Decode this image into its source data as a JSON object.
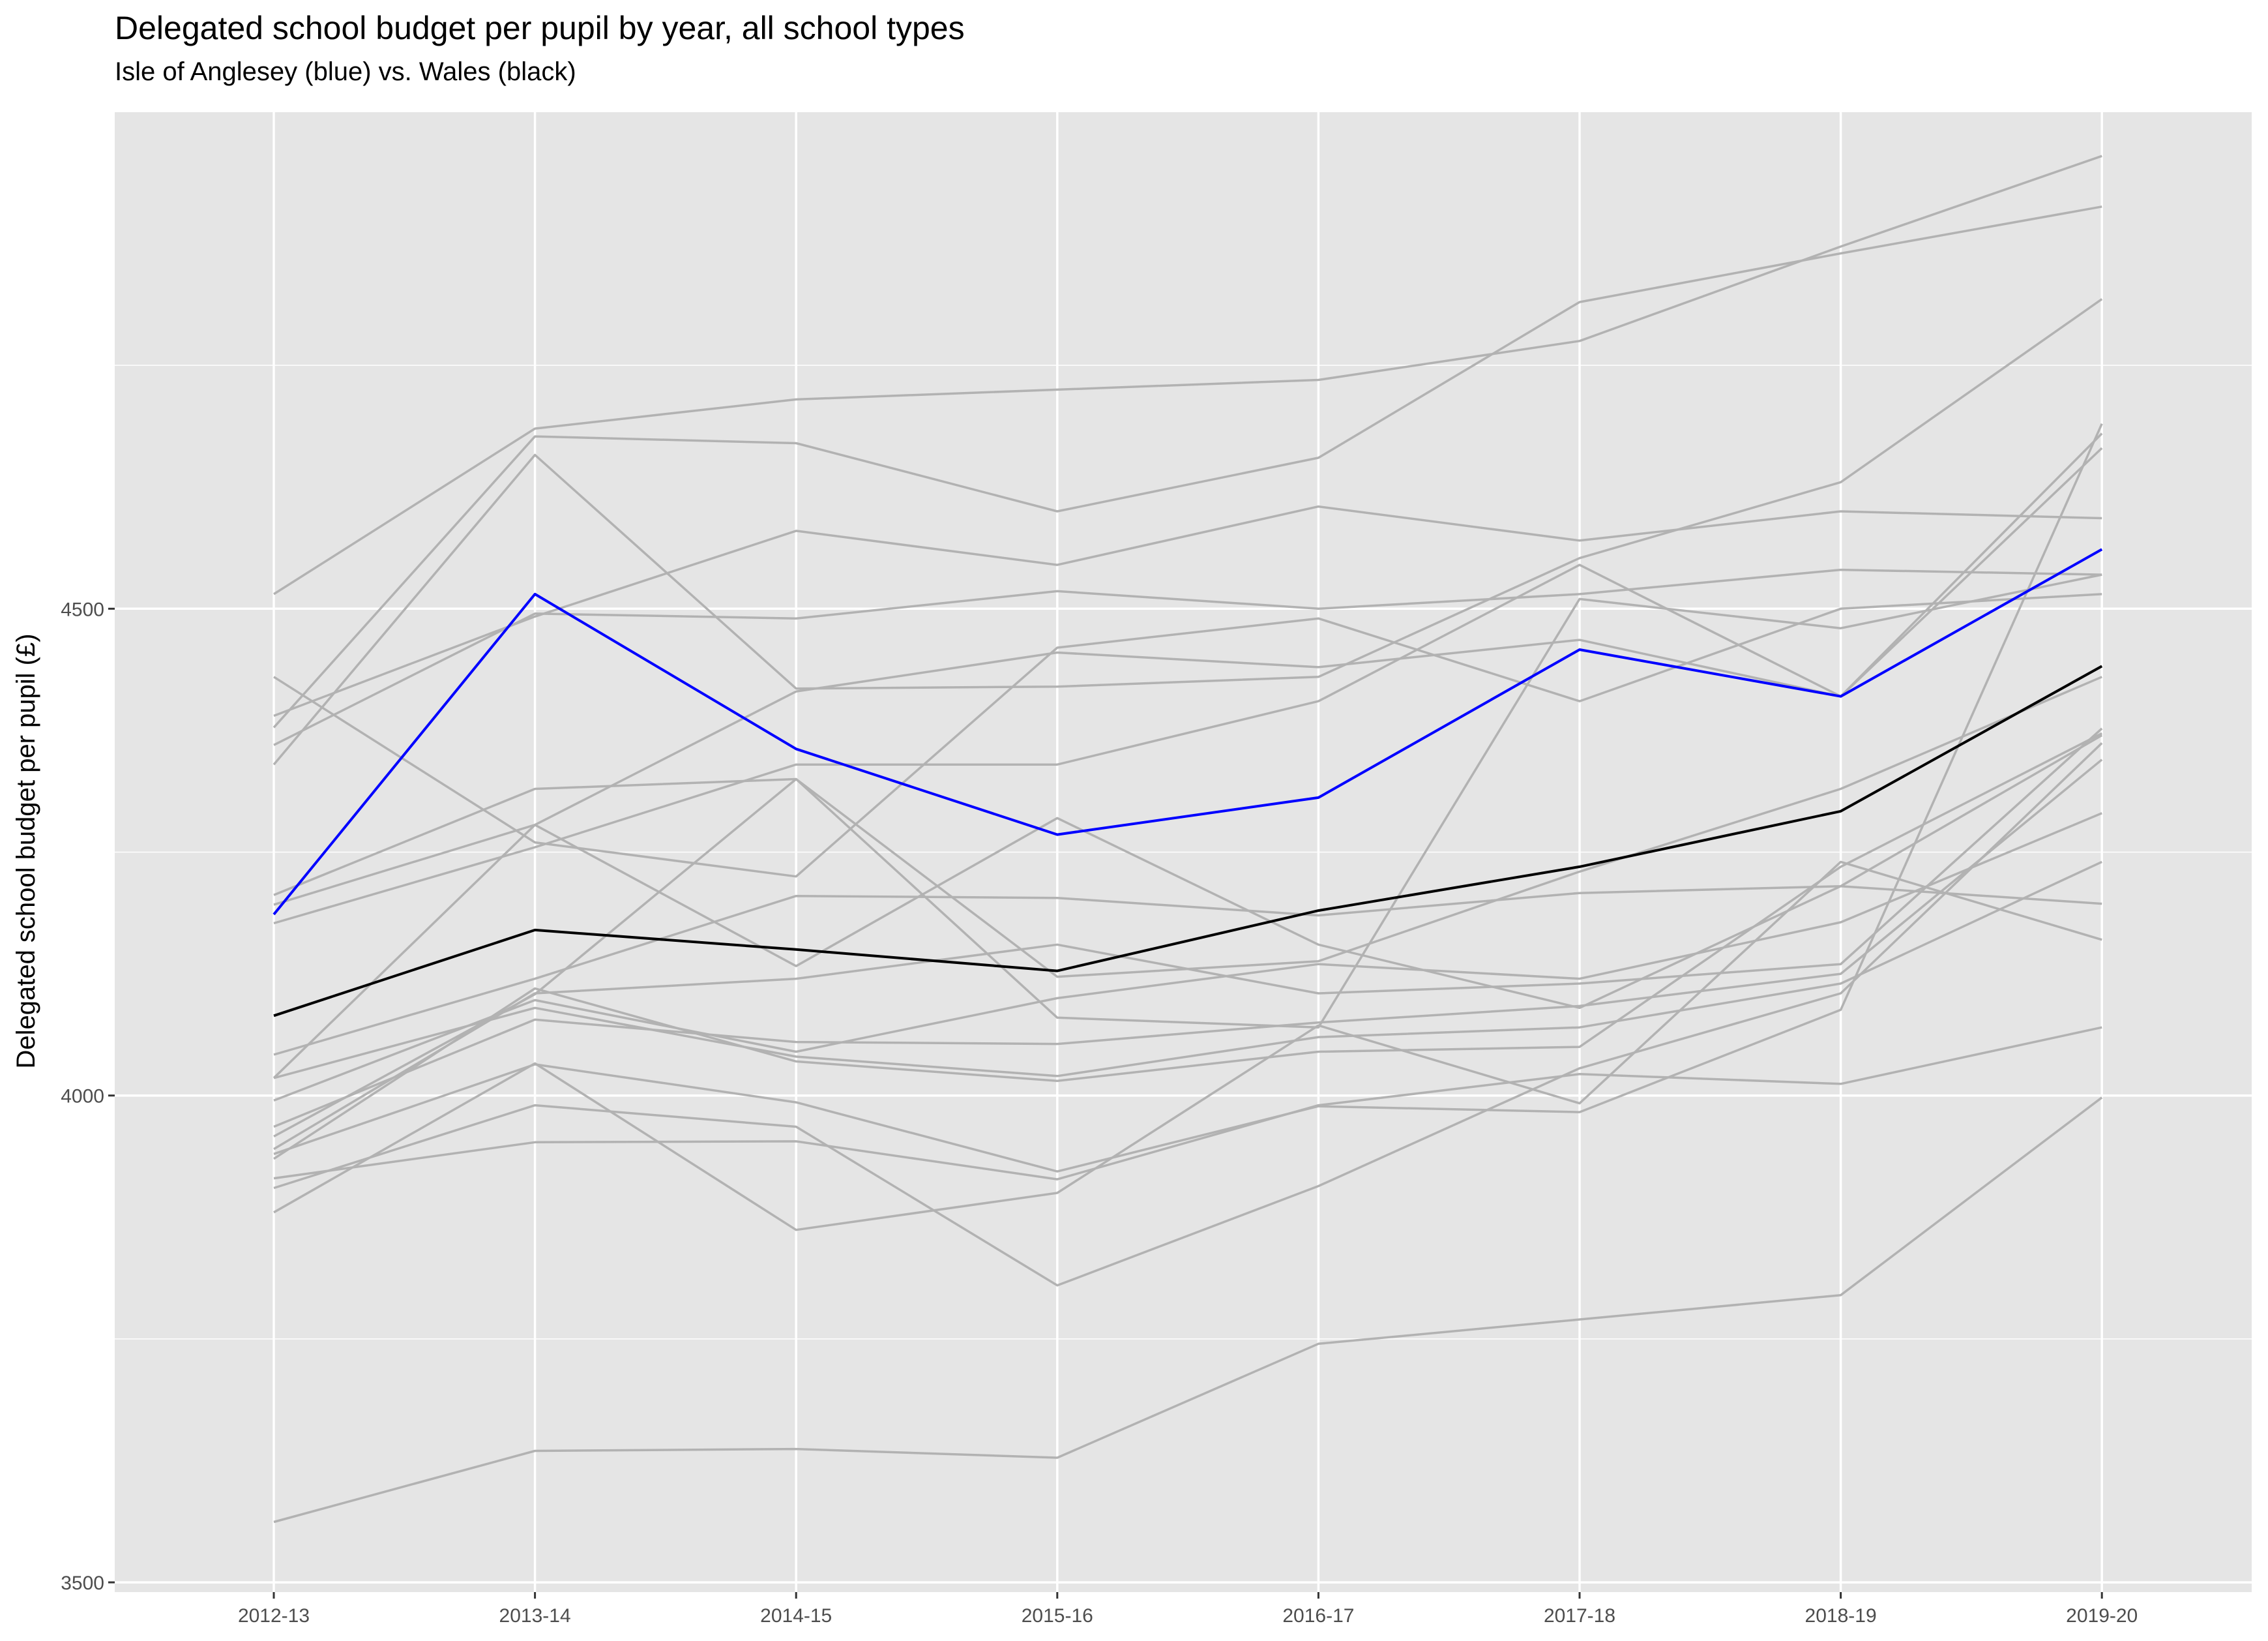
{
  "chart_data": {
    "type": "line",
    "title": "Delegated school budget per pupil by year, all school types",
    "subtitle": "Isle of Anglesey (blue) vs. Wales (black)",
    "xlabel": "",
    "ylabel": "Delegated school budget per pupil (£)",
    "categories": [
      "2012-13",
      "2013-14",
      "2014-15",
      "2015-16",
      "2016-17",
      "2017-18",
      "2018-19",
      "2019-20"
    ],
    "ylim": [
      3490,
      5010
    ],
    "yticks": [
      3500,
      4000,
      4500
    ],
    "grid": true,
    "colors": {
      "panel": "#e5e5e5",
      "grid": "#ffffff",
      "other": "#b2b2b2",
      "highlight": "#0000ff",
      "wales": "#000000"
    },
    "highlight": {
      "values": [
        4186,
        4515,
        4356,
        4268,
        4306,
        4458,
        4410,
        4561
      ]
    },
    "wales": {
      "values": [
        4082,
        4170,
        4150,
        4128,
        4190,
        4235,
        4292,
        4441
      ]
    },
    "series": [
      {
        "values": [
          4515,
          4685,
          4715,
          4725,
          4735,
          4775,
          4872,
          4965
        ]
      },
      {
        "values": [
          4378,
          4677,
          4670,
          4600,
          4655,
          4815,
          4865,
          4913
        ]
      },
      {
        "values": [
          4390,
          4492,
          4580,
          4545,
          4605,
          4570,
          4600,
          4593
        ]
      },
      {
        "values": [
          4340,
          4658,
          4418,
          4420,
          4430,
          4552,
          4630,
          4818
        ]
      },
      {
        "values": [
          4360,
          4495,
          4490,
          4518,
          4500,
          4515,
          4540,
          4535
        ]
      },
      {
        "values": [
          4430,
          4260,
          4225,
          4460,
          4490,
          4405,
          4500,
          4515
        ]
      },
      {
        "values": [
          4206,
          4315,
          4325,
          4080,
          4070,
          4510,
          4480,
          4535
        ]
      },
      {
        "values": [
          4196,
          4278,
          4415,
          4455,
          4440,
          4468,
          4410,
          4680
        ]
      },
      {
        "values": [
          4177,
          4255,
          4340,
          4340,
          4405,
          4545,
          4410,
          4665
        ]
      },
      {
        "values": [
          4018,
          4278,
          4133,
          4285,
          4155,
          4090,
          4215,
          4197
        ]
      },
      {
        "values": [
          3958,
          4104,
          4325,
          4122,
          4138,
          4230,
          4315,
          4430
        ]
      },
      {
        "values": [
          4042,
          4120,
          4205,
          4203,
          4185,
          4208,
          4215,
          4370
        ]
      },
      {
        "values": [
          3995,
          4098,
          4045,
          4100,
          4135,
          4120,
          4178,
          4290
        ]
      },
      {
        "values": [
          4018,
          4090,
          4040,
          4020,
          4060,
          4070,
          4115,
          4240
        ]
      },
      {
        "values": [
          3968,
          4078,
          4055,
          4053,
          4075,
          4092,
          4125,
          4345
        ]
      },
      {
        "values": [
          3945,
          4105,
          4120,
          4155,
          4105,
          4115,
          4135,
          4377
        ]
      },
      {
        "values": [
          3935,
          4110,
          4035,
          4015,
          4045,
          4050,
          4235,
          4372
        ]
      },
      {
        "values": [
          3940,
          4032,
          3993,
          3922,
          3989,
          3983,
          4088,
          4690
        ]
      },
      {
        "values": [
          3905,
          3990,
          3968,
          3805,
          3907,
          4028,
          4105,
          4362
        ]
      },
      {
        "values": [
          3915,
          3952,
          3953,
          3914,
          3990,
          4022,
          4012,
          4070
        ]
      },
      {
        "values": [
          3880,
          4033,
          3862,
          3900,
          4072,
          3992,
          4240,
          4160
        ]
      },
      {
        "values": [
          3562,
          3635,
          3637,
          3628,
          3745,
          3770,
          3795,
          3998
        ]
      }
    ]
  }
}
